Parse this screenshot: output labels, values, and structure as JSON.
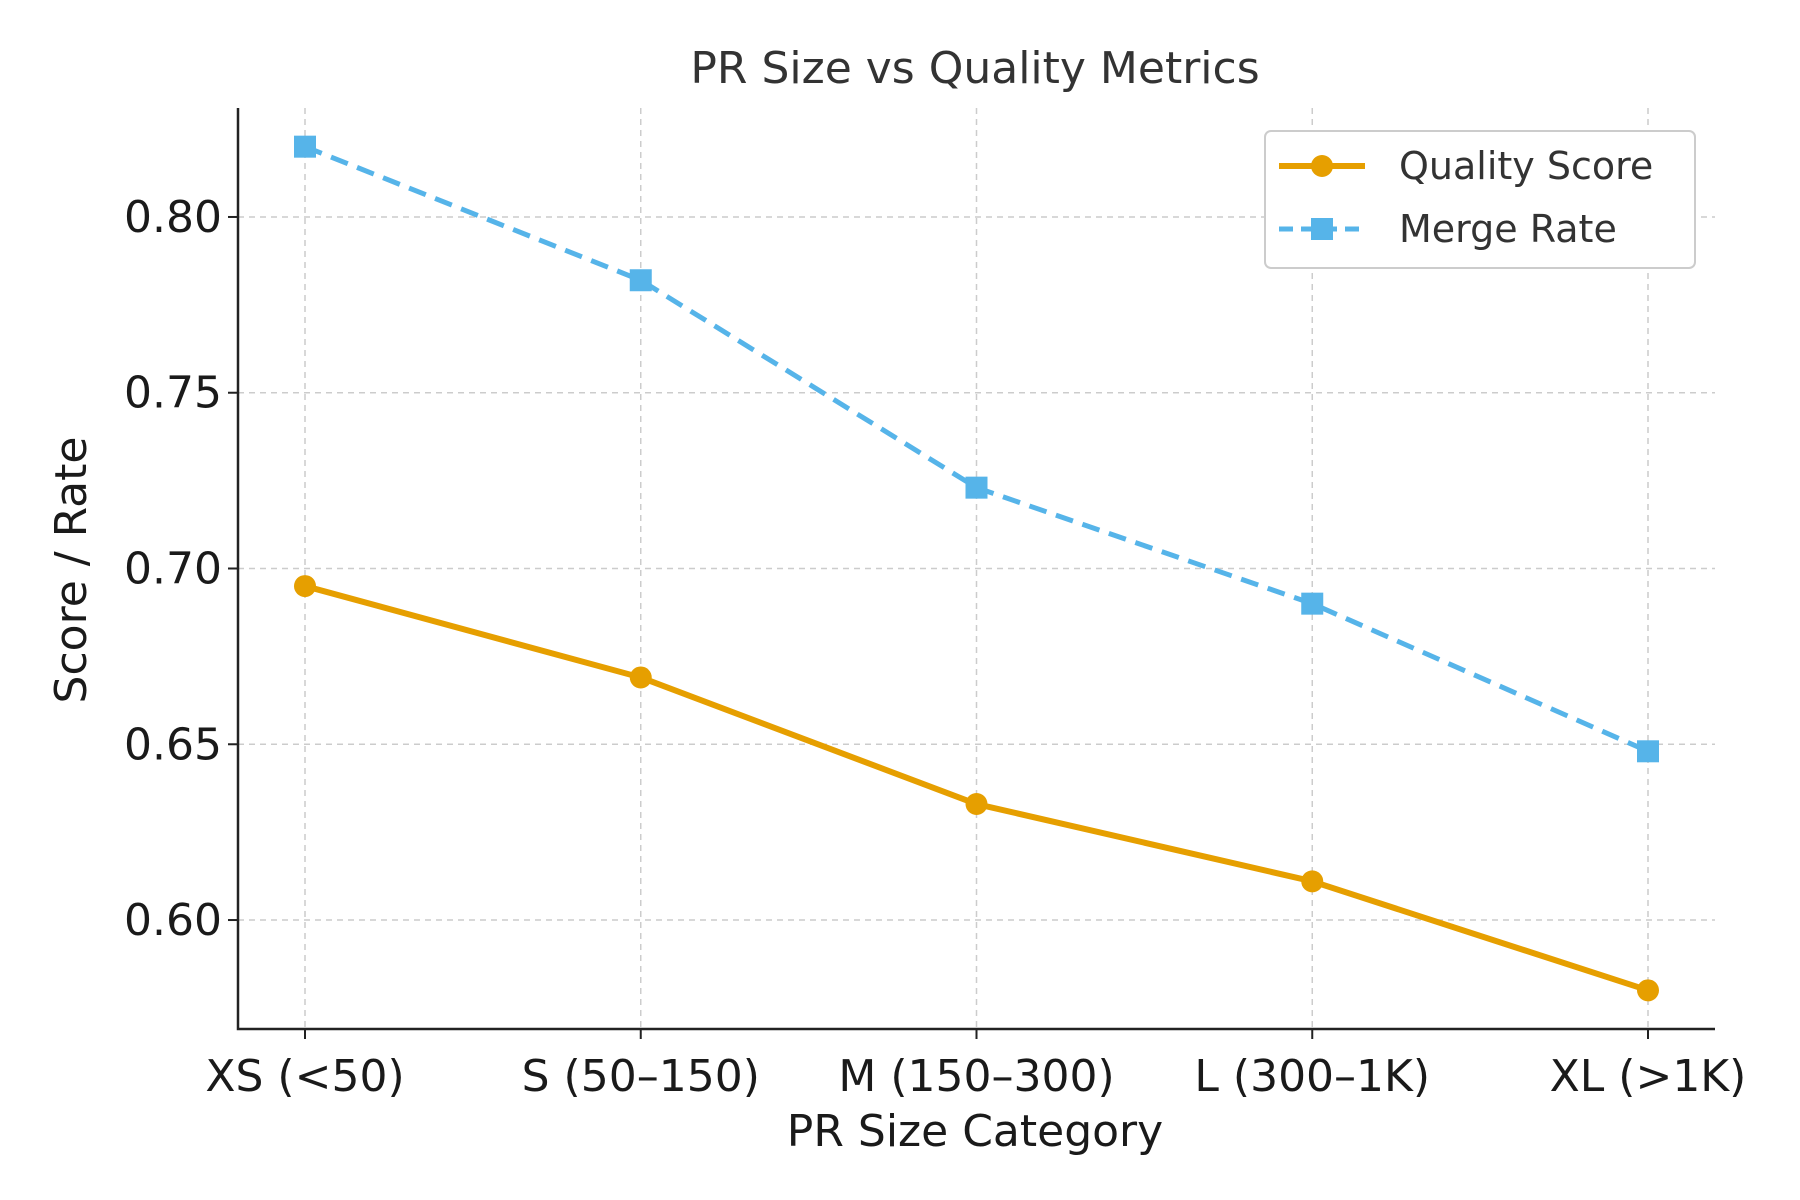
{
  "chart_data": {
    "type": "line",
    "title": "PR Size vs Quality Metrics",
    "xlabel": "PR Size Category",
    "ylabel": "Score / Rate",
    "categories": [
      "XS (<50)",
      "S (50–150)",
      "M (150–300)",
      "L (300–1K)",
      "XL (>1K)"
    ],
    "ylim": [
      0.569,
      0.831
    ],
    "yticks": [
      "0.60",
      "0.65",
      "0.70",
      "0.75",
      "0.80"
    ],
    "grid": true,
    "legend_position": "top-right",
    "series": [
      {
        "name": "Quality Score",
        "values": [
          0.695,
          0.669,
          0.633,
          0.611,
          0.58
        ],
        "color": "#E69F00",
        "line_style": "solid",
        "marker": "circle"
      },
      {
        "name": "Merge Rate",
        "values": [
          0.82,
          0.782,
          0.723,
          0.69,
          0.648
        ],
        "color": "#56B4E9",
        "line_style": "dashed",
        "marker": "square"
      }
    ]
  }
}
